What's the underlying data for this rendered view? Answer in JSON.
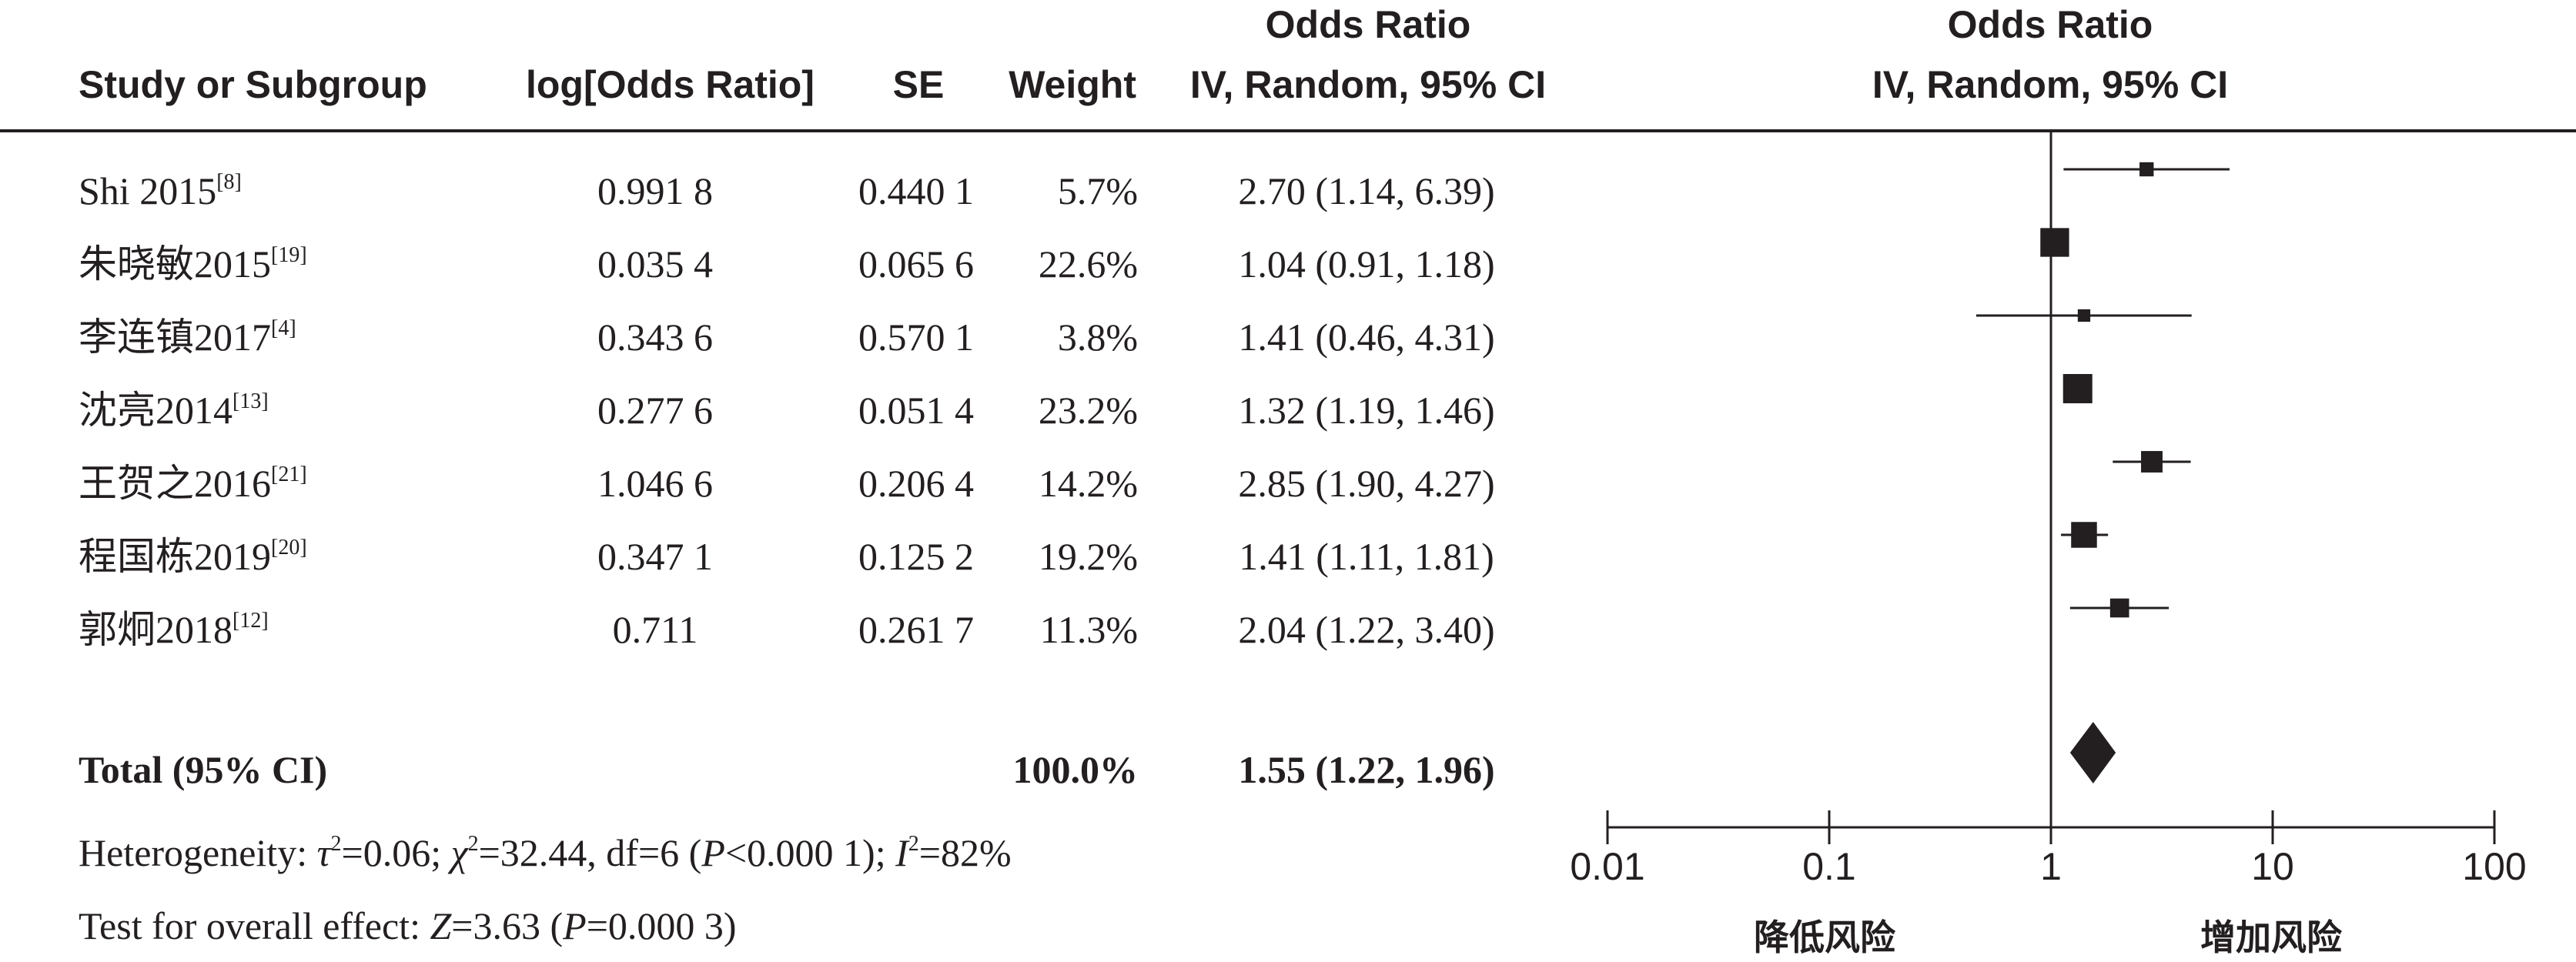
{
  "header": {
    "study_col": "Study or Subgroup",
    "log_or_col": "log[Odds Ratio]",
    "se_col": "SE",
    "weight_col": "Weight",
    "or_col_title": "Odds Ratio",
    "or_col_method": "IV, Random, 95% CI",
    "plot_col_title": "Odds Ratio",
    "plot_col_method": "IV, Random, 95% CI"
  },
  "studies": [
    {
      "name": "Shi 2015",
      "ref": "[8]",
      "log_or": "0.991 8",
      "se": "0.440 1",
      "weight": "5.7%",
      "ci_text": "2.70 (1.14, 6.39)"
    },
    {
      "name": "朱晓敏2015",
      "ref": "[19]",
      "log_or": "0.035 4",
      "se": "0.065 6",
      "weight": "22.6%",
      "ci_text": "1.04 (0.91, 1.18)"
    },
    {
      "name": "李连镇2017",
      "ref": "[4]",
      "log_or": "0.343 6",
      "se": "0.570 1",
      "weight": "3.8%",
      "ci_text": "1.41 (0.46, 4.31)"
    },
    {
      "name": "沈亮2014",
      "ref": "[13]",
      "log_or": "0.277 6",
      "se": "0.051 4",
      "weight": "23.2%",
      "ci_text": "1.32 (1.19, 1.46)"
    },
    {
      "name": "王贺之2016",
      "ref": "[21]",
      "log_or": "1.046 6",
      "se": "0.206 4",
      "weight": "14.2%",
      "ci_text": "2.85 (1.90, 4.27)"
    },
    {
      "name": "程国栋2019",
      "ref": "[20]",
      "log_or": "0.347 1",
      "se": "0.125 2",
      "weight": "19.2%",
      "ci_text": "1.41 (1.11, 1.81)"
    },
    {
      "name": "郭炯2018",
      "ref": "[12]",
      "log_or": "0.711",
      "se": "0.261 7",
      "weight": "11.3%",
      "ci_text": "2.04 (1.22, 3.40)"
    }
  ],
  "total": {
    "label": "Total (95% CI)",
    "weight": "100.0%",
    "ci_text": "1.55 (1.22, 1.96)"
  },
  "heterogeneity": {
    "prefix": "Heterogeneity: ",
    "tau_sym": "τ",
    "tau_val": "=0.06; ",
    "chi_sym": "χ",
    "chi_val": "=32.44, df=6 (",
    "p_sym": "P",
    "p_val": "<0.000 1); ",
    "i_sym": "I",
    "i_val": "=82%",
    "sq": "2"
  },
  "overall_effect": {
    "prefix": "Test for overall effect: ",
    "z_sym": "Z",
    "z_val": "=3.63 (",
    "p_sym": "P",
    "p_val": "=0.000 3)"
  },
  "axis": {
    "ticks": [
      "0.01",
      "0.1",
      "1",
      "10",
      "100"
    ],
    "left_label": "降低风险",
    "right_label": "增加风险"
  },
  "chart_data": {
    "type": "forest",
    "scale": "log",
    "xlim": [
      0.01,
      100
    ],
    "reference_line": 1,
    "ticks": [
      0.01,
      0.1,
      1,
      10,
      100
    ],
    "points": [
      {
        "study": "Shi 2015",
        "or": 2.7,
        "lower": 1.14,
        "upper": 6.39,
        "weight": 5.7
      },
      {
        "study": "朱晓敏2015",
        "or": 1.04,
        "lower": 0.91,
        "upper": 1.18,
        "weight": 22.6
      },
      {
        "study": "李连镇2017",
        "or": 1.41,
        "lower": 0.46,
        "upper": 4.31,
        "weight": 3.8
      },
      {
        "study": "沈亮2014",
        "or": 1.32,
        "lower": 1.19,
        "upper": 1.46,
        "weight": 23.2
      },
      {
        "study": "王贺之2016",
        "or": 2.85,
        "lower": 1.9,
        "upper": 4.27,
        "weight": 14.2
      },
      {
        "study": "程国栋2019",
        "or": 1.41,
        "lower": 1.11,
        "upper": 1.81,
        "weight": 19.2
      },
      {
        "study": "郭炯2018",
        "or": 2.04,
        "lower": 1.22,
        "upper": 3.4,
        "weight": 11.3
      }
    ],
    "pooled": {
      "or": 1.55,
      "lower": 1.22,
      "upper": 1.96
    }
  }
}
